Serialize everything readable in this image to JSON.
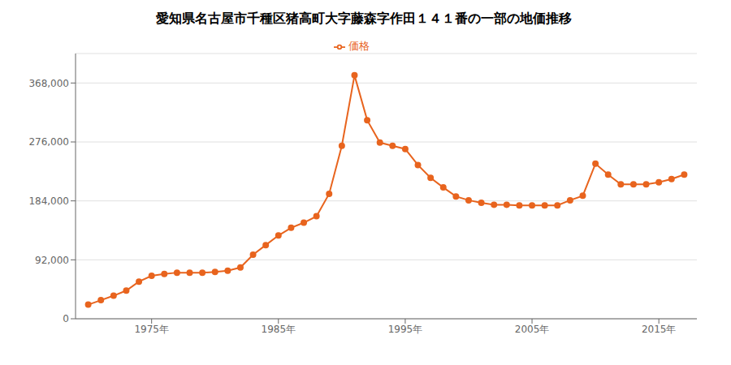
{
  "chart_data": {
    "type": "line",
    "title": "愛知県名古屋市千種区猪高町大字藤森字作田１４１番の一部の地価推移",
    "x": [
      1970,
      1971,
      1972,
      1973,
      1974,
      1975,
      1976,
      1977,
      1978,
      1979,
      1980,
      1981,
      1982,
      1983,
      1984,
      1985,
      1986,
      1987,
      1988,
      1989,
      1990,
      1991,
      1992,
      1993,
      1994,
      1995,
      1996,
      1997,
      1998,
      1999,
      2000,
      2001,
      2002,
      2003,
      2004,
      2005,
      2006,
      2007,
      2008,
      2009,
      2010,
      2011,
      2012,
      2013,
      2014,
      2015,
      2016,
      2017
    ],
    "series": [
      {
        "name": "価格",
        "color": "#e8641e",
        "marker": "circle",
        "values": [
          22000,
          29000,
          36000,
          44000,
          58000,
          67000,
          70000,
          72000,
          72000,
          72000,
          73000,
          75000,
          80000,
          100000,
          115000,
          130000,
          142000,
          150000,
          160000,
          195000,
          270000,
          380000,
          310000,
          275000,
          270000,
          265000,
          240000,
          220000,
          205000,
          191000,
          185000,
          181000,
          178000,
          178000,
          177000,
          177000,
          177000,
          177000,
          185000,
          192000,
          242000,
          225000,
          210000,
          210000,
          210000,
          213000,
          218000,
          225000
        ]
      }
    ],
    "xlim": [
      1969,
      2018
    ],
    "xticks": [
      {
        "value": 1975,
        "label": "1975年"
      },
      {
        "value": 1985,
        "label": "1985年"
      },
      {
        "value": 1995,
        "label": "1995年"
      },
      {
        "value": 2005,
        "label": "2005年"
      },
      {
        "value": 2015,
        "label": "2015年"
      }
    ],
    "ylim": [
      0,
      414000
    ],
    "yticks": [
      0,
      {
        "value": 92000,
        "label": "92,000"
      },
      {
        "value": 184000,
        "label": "184,000"
      },
      {
        "value": 276000,
        "label": "276,000"
      },
      {
        "value": 368000,
        "label": "368,000"
      }
    ],
    "grid": "y",
    "legend": "top"
  }
}
